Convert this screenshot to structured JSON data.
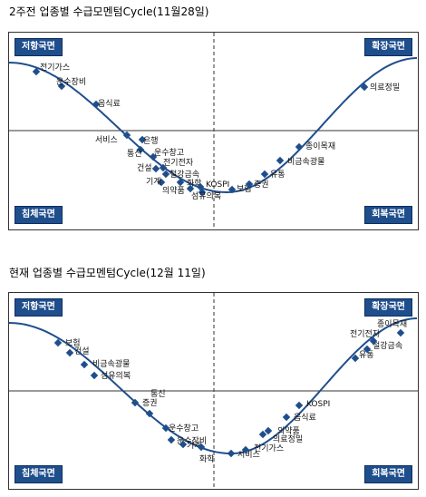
{
  "panels": [
    {
      "title": "2주전 업종별 수급모멘텀Cycle(11월28일)",
      "quadrants": {
        "tl": "저항국면",
        "tr": "확장국면",
        "bl": "침체국면",
        "br": "회복국면"
      },
      "points": [
        {
          "label": "전기가스"
        },
        {
          "label": "운수장비"
        },
        {
          "label": "음식료"
        },
        {
          "label": "서비스"
        },
        {
          "label": "은행"
        },
        {
          "label": "통신"
        },
        {
          "label": "운수창고"
        },
        {
          "label": "건설"
        },
        {
          "label": "전기전자"
        },
        {
          "label": "철강금속"
        },
        {
          "label": "기계"
        },
        {
          "label": "화학"
        },
        {
          "label": "의약품"
        },
        {
          "label": "KOSPI"
        },
        {
          "label": "섬유의복"
        },
        {
          "label": "보험"
        },
        {
          "label": "증권"
        },
        {
          "label": "유통"
        },
        {
          "label": "비금속광물"
        },
        {
          "label": "종이목재"
        },
        {
          "label": "의료정밀"
        }
      ]
    },
    {
      "title": "현재 업종별 수급모멘텀Cycle(12월 11일)",
      "quadrants": {
        "tl": "저항국면",
        "tr": "확장국면",
        "bl": "침체국면",
        "br": "회복국면"
      },
      "points": [
        {
          "label": "보험"
        },
        {
          "label": "건설"
        },
        {
          "label": "비금속광물"
        },
        {
          "label": "섬유의복"
        },
        {
          "label": "증권"
        },
        {
          "label": "통신"
        },
        {
          "label": "운수창고"
        },
        {
          "label": "운수장비"
        },
        {
          "label": "기계"
        },
        {
          "label": "화학"
        },
        {
          "label": "서비스"
        },
        {
          "label": "전기가스"
        },
        {
          "label": "의료정밀"
        },
        {
          "label": "의약품"
        },
        {
          "label": "음식료"
        },
        {
          "label": "KOSPI"
        },
        {
          "label": "유통"
        },
        {
          "label": "철강금속"
        },
        {
          "label": "전기전자"
        },
        {
          "label": "종이목재"
        }
      ]
    }
  ],
  "colors": {
    "curve": "#1f4e8c",
    "marker": "#1f4e8c",
    "quadrant_bg": "#1f4e8c",
    "axis": "#333333"
  }
}
